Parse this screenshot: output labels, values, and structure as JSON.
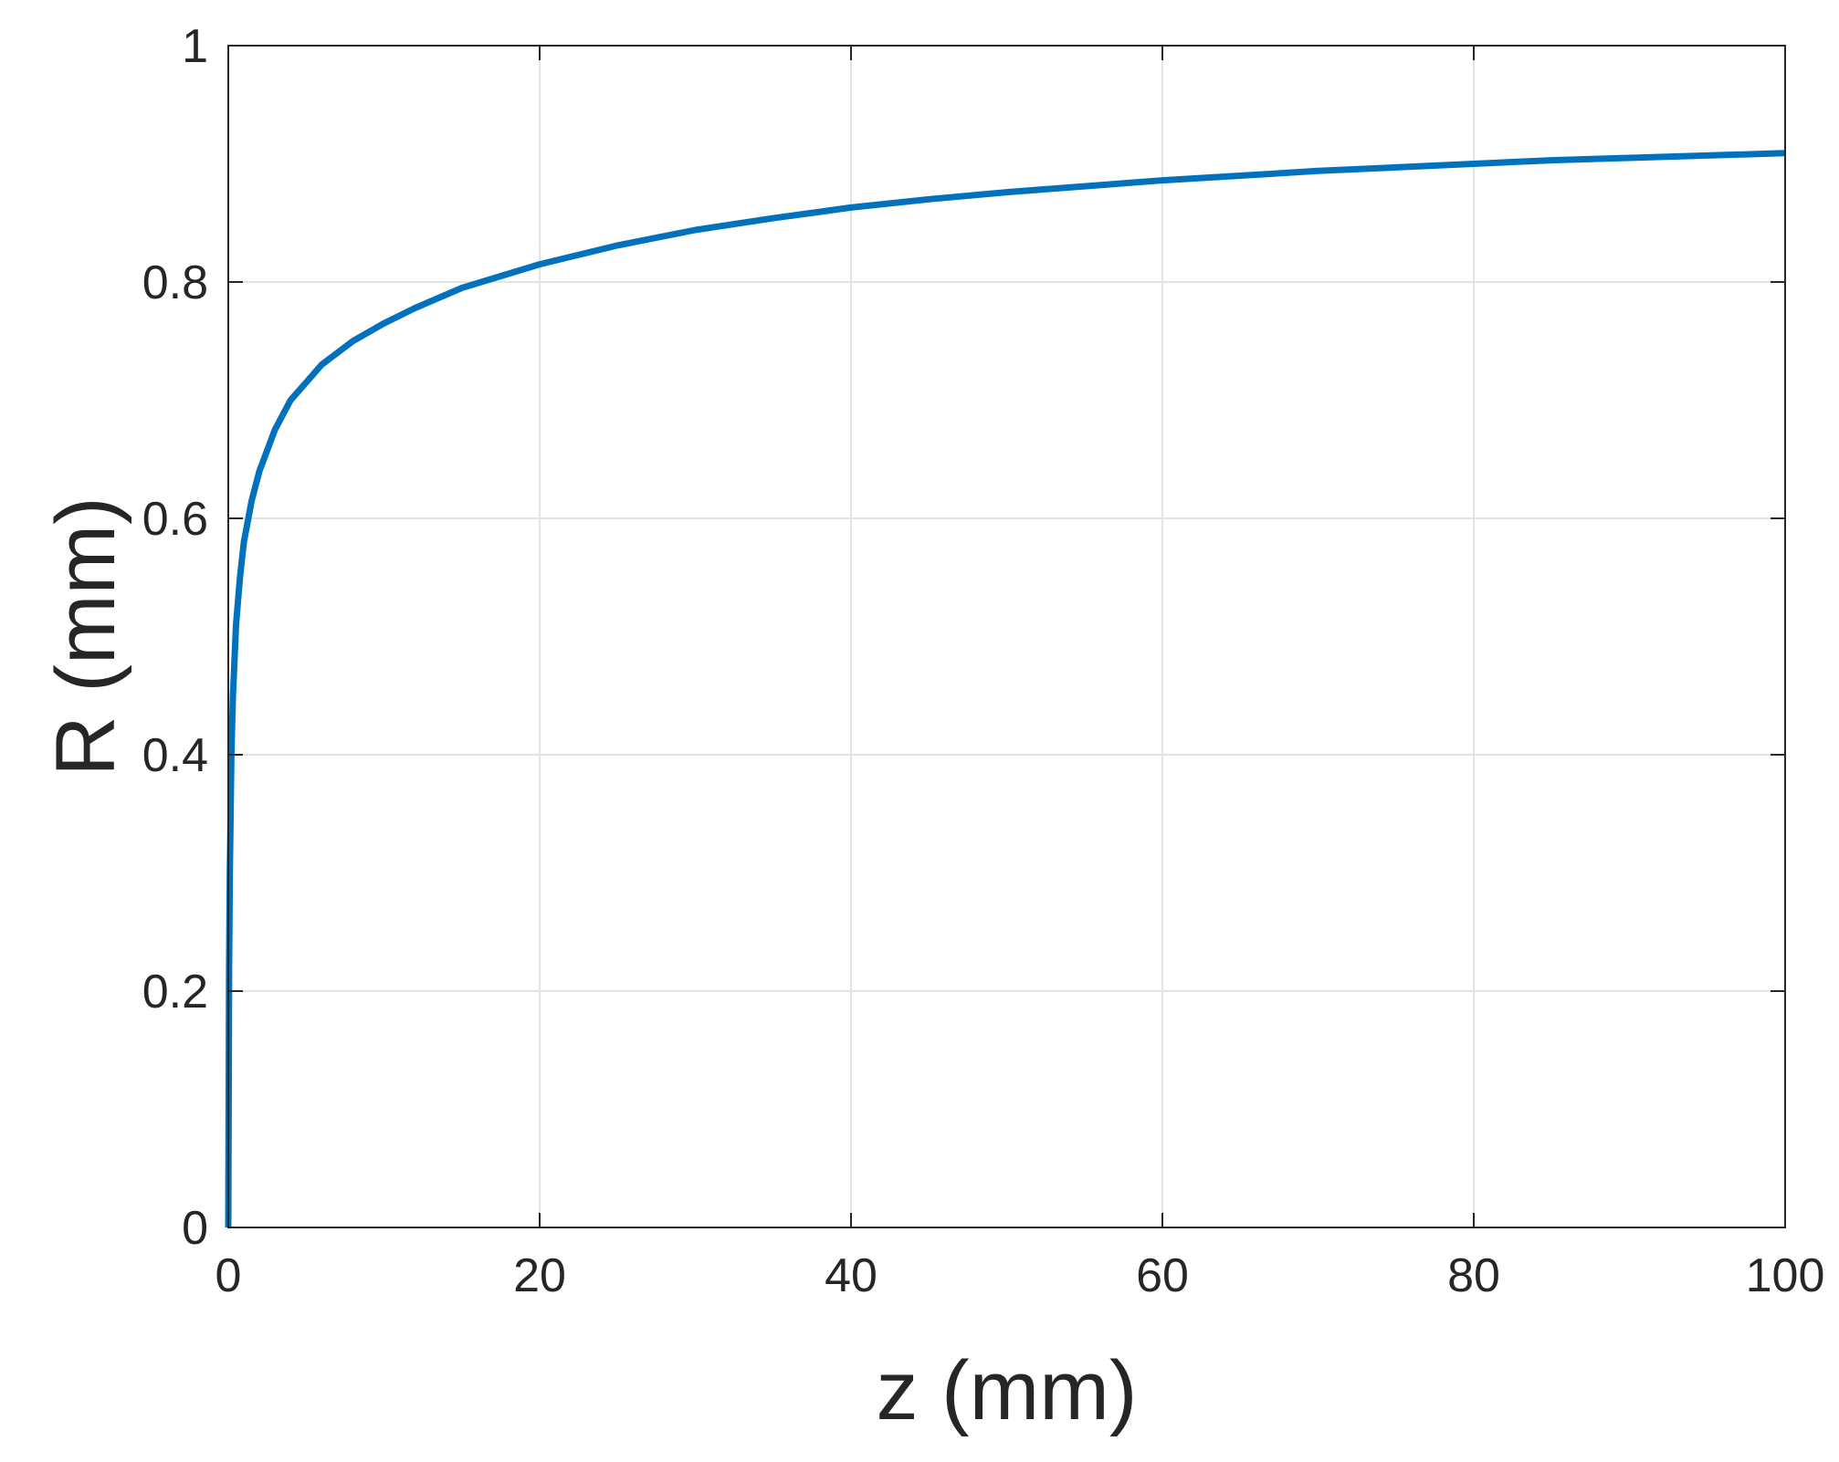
{
  "chart_data": {
    "type": "line",
    "title": "",
    "xlabel": "z (mm)",
    "ylabel": "R (mm)",
    "xlim": [
      0,
      100
    ],
    "ylim": [
      0,
      1
    ],
    "xticks": [
      0,
      20,
      40,
      60,
      80,
      100
    ],
    "yticks": [
      0,
      0.2,
      0.4,
      0.6,
      0.8,
      1
    ],
    "xtick_labels": [
      "0",
      "20",
      "40",
      "60",
      "80",
      "100"
    ],
    "ytick_labels": [
      "0",
      "0.2",
      "0.4",
      "0.6",
      "0.8",
      "1"
    ],
    "grid": true,
    "legend": "none",
    "line_color": "#0072BD",
    "series": [
      {
        "x": [
          0,
          0.05,
          0.1,
          0.2,
          0.3,
          0.5,
          0.75,
          1,
          1.5,
          2,
          3,
          4,
          5,
          6,
          8,
          10,
          12,
          15,
          20,
          25,
          30,
          35,
          40,
          45,
          50,
          55,
          60,
          65,
          70,
          75,
          80,
          85,
          90,
          95,
          100
        ],
        "y": [
          0,
          0.22,
          0.3,
          0.4,
          0.45,
          0.51,
          0.55,
          0.58,
          0.615,
          0.64,
          0.675,
          0.7,
          0.715,
          0.73,
          0.75,
          0.765,
          0.778,
          0.795,
          0.815,
          0.831,
          0.844,
          0.854,
          0.863,
          0.87,
          0.876,
          0.881,
          0.886,
          0.89,
          0.894,
          0.897,
          0.9,
          0.903,
          0.905,
          0.907,
          0.909
        ]
      }
    ]
  }
}
